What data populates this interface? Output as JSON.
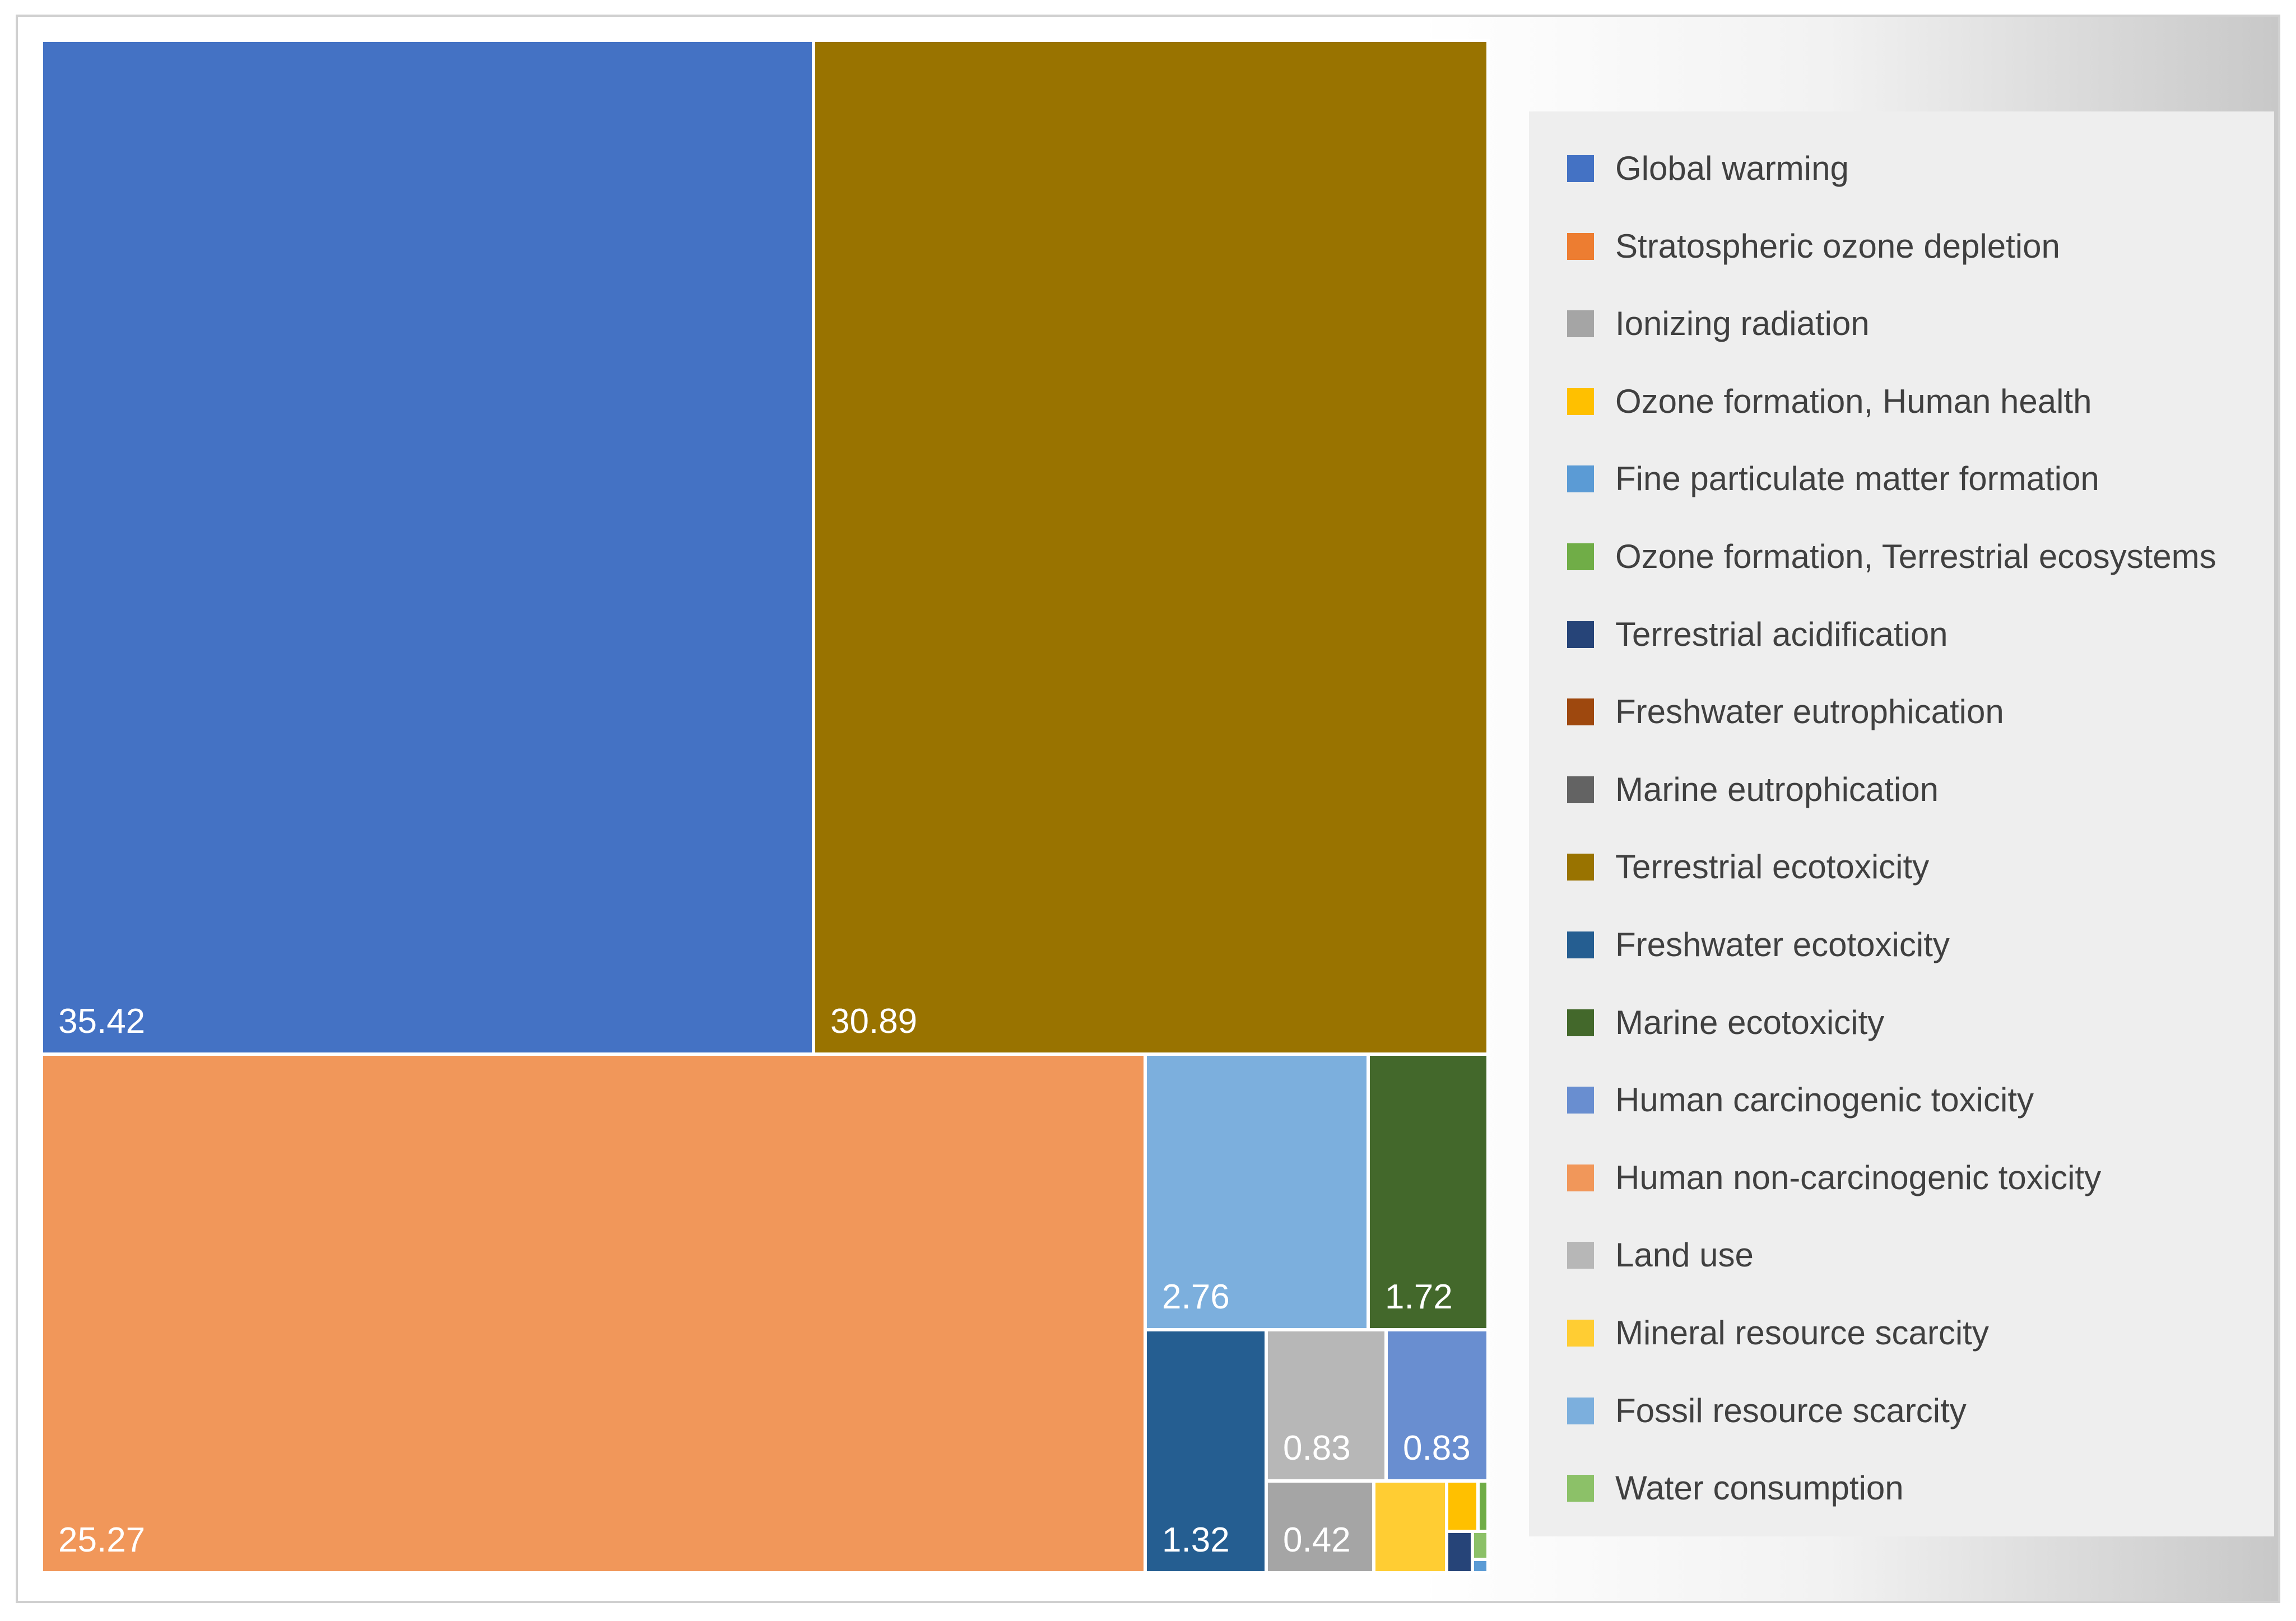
{
  "chart_data": {
    "type": "treemap",
    "title": "",
    "series": [
      {
        "name": "Global warming",
        "value": 35.42,
        "color": "#4472C4",
        "show_label": true
      },
      {
        "name": "Terrestrial ecotoxicity",
        "value": 30.89,
        "color": "#997300",
        "show_label": true
      },
      {
        "name": "Human non-carcinogenic toxicity",
        "value": 25.27,
        "color": "#F1975A",
        "show_label": true
      },
      {
        "name": "Fossil resource scarcity",
        "value": 2.76,
        "color": "#7CAFDD",
        "show_label": true
      },
      {
        "name": "Marine ecotoxicity",
        "value": 1.72,
        "color": "#43682B",
        "show_label": true
      },
      {
        "name": "Freshwater ecotoxicity",
        "value": 1.32,
        "color": "#255E91",
        "show_label": true
      },
      {
        "name": "Land use",
        "value": 0.83,
        "color": "#B7B7B7",
        "show_label": true
      },
      {
        "name": "Human carcinogenic toxicity",
        "value": 0.83,
        "color": "#698ED0",
        "show_label": true
      },
      {
        "name": "Ionizing radiation",
        "value": 0.42,
        "color": "#A5A5A5",
        "show_label": true
      },
      {
        "name": "Mineral resource scarcity",
        "value": 0.35,
        "color": "#FFCD33",
        "show_label": false
      },
      {
        "name": "Ozone formation, Human health",
        "value": 0.12,
        "color": "#FFC000",
        "show_label": false
      },
      {
        "name": "Ozone formation, Terrestrial ecosystems",
        "value": 0.12,
        "color": "#70AD47",
        "show_label": false
      },
      {
        "name": "Terrestrial acidification",
        "value": 0.07,
        "color": "#264478",
        "show_label": false
      },
      {
        "name": "Water consumption",
        "value": 0.05,
        "color": "#8CC168",
        "show_label": false
      },
      {
        "name": "Fine particulate matter formation",
        "value": 0.03,
        "color": "#5B9BD5",
        "show_label": false
      }
    ],
    "legend": [
      {
        "label": "Global warming",
        "color": "#4472C4"
      },
      {
        "label": "Stratospheric ozone depletion",
        "color": "#ED7D31"
      },
      {
        "label": "Ionizing radiation",
        "color": "#A5A5A5"
      },
      {
        "label": "Ozone formation, Human health",
        "color": "#FFC000"
      },
      {
        "label": "Fine particulate matter formation",
        "color": "#5B9BD5"
      },
      {
        "label": "Ozone formation, Terrestrial ecosystems",
        "color": "#70AD47"
      },
      {
        "label": "Terrestrial acidification",
        "color": "#264478"
      },
      {
        "label": "Freshwater eutrophication",
        "color": "#9E480E"
      },
      {
        "label": "Marine eutrophication",
        "color": "#636363"
      },
      {
        "label": "Terrestrial ecotoxicity",
        "color": "#997300"
      },
      {
        "label": "Freshwater ecotoxicity",
        "color": "#255E91"
      },
      {
        "label": "Marine ecotoxicity",
        "color": "#43682B"
      },
      {
        "label": "Human carcinogenic toxicity",
        "color": "#698ED0"
      },
      {
        "label": "Human non-carcinogenic toxicity",
        "color": "#F1975A"
      },
      {
        "label": "Land use",
        "color": "#B7B7B7"
      },
      {
        "label": "Mineral resource scarcity",
        "color": "#FFCD33"
      },
      {
        "label": "Fossil resource scarcity",
        "color": "#7CAFDD"
      },
      {
        "label": "Water consumption",
        "color": "#8CC168"
      }
    ],
    "legend_position": "right"
  }
}
